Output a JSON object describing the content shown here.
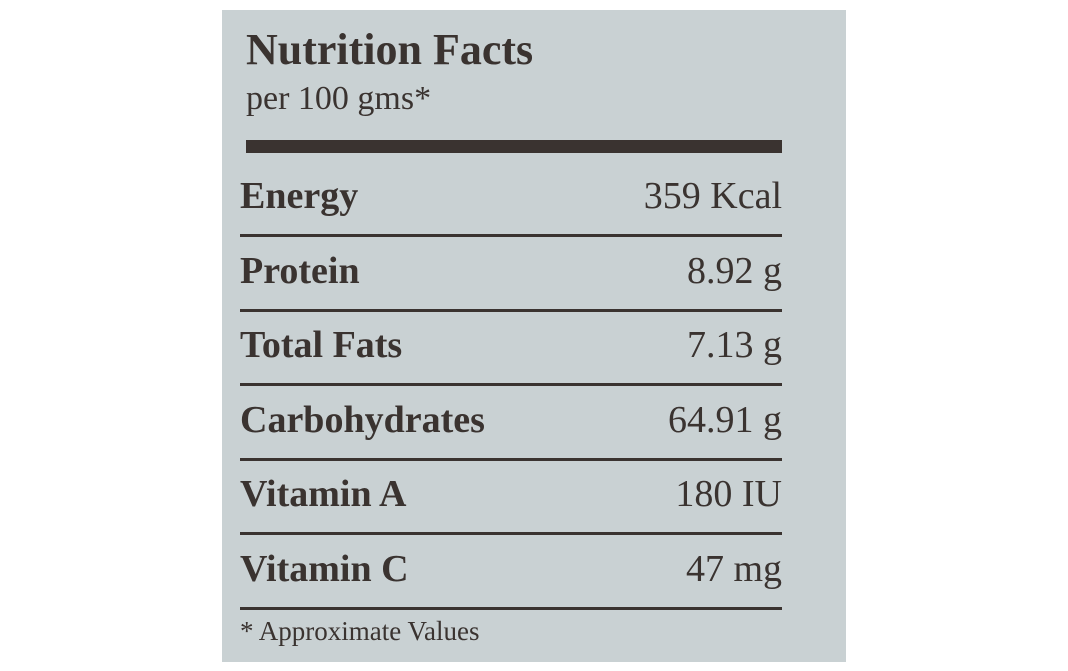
{
  "header": {
    "title": "Nutrition Facts",
    "subtitle": "per 100 gms*"
  },
  "table": {
    "rows": [
      [
        "Energy",
        "359 Kcal"
      ],
      [
        "Protein",
        "8.92 g"
      ],
      [
        "Total Fats",
        "7.13 g"
      ],
      [
        "Carbohydrates",
        "64.91 g"
      ],
      [
        "Vitamin A",
        "180 IU"
      ],
      [
        "Vitamin C",
        "47 mg"
      ]
    ]
  },
  "footnote": "* Approximate Values"
}
